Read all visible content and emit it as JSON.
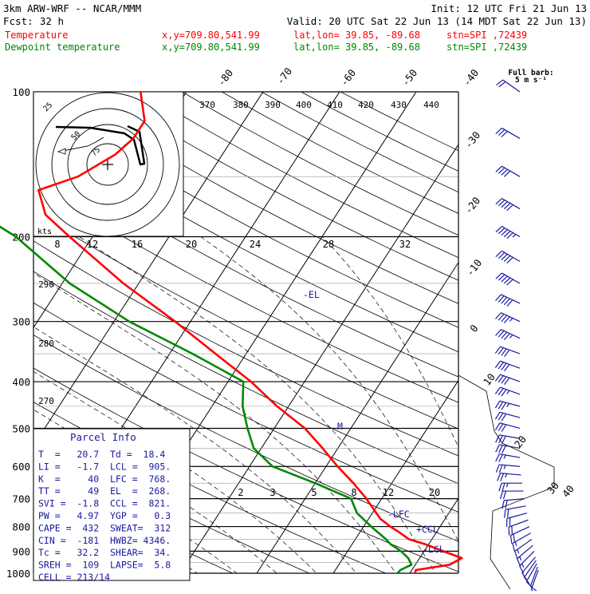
{
  "header": {
    "model": "3km ARW-WRF -- NCAR/MMM",
    "init": "Init: 12 UTC Fri 21 Jun 13",
    "fcst_label": "Fcst:",
    "fcst_value": "32 h",
    "valid": "Valid: 20 UTC Sat 22 Jun 13 (14 MDT Sat 22 Jun 13)",
    "temp_label": "Temperature",
    "dew_label": "Dewpoint temperature",
    "xy": "x,y=709.80,541.99",
    "latlon": "lat,lon= 39.85, -89.68",
    "stn": "stn=SPI ,72439",
    "barb_title_1": "Full barb:",
    "barb_title_2": "5 m s⁻¹"
  },
  "colors": {
    "temperature": "#ff0000",
    "dewpoint": "#008800",
    "isotherm": "#000000",
    "barb": "#1a1aa0",
    "header_temp": "#ff0000",
    "header_dew": "#008800",
    "parcel_text": "#1a1aa0"
  },
  "parcel": {
    "title": "Parcel Info",
    "rows": [
      "T  =   20.7  Td =  18.4",
      "LI =   -1.7  LCL =  905.",
      "K  =     40  LFC =  768.",
      "TT =     49  EL  =  268.",
      "SVI =  -1.8  CCL =  821.",
      "PW =   4.97  YGP =   0.3",
      "CAPE =  432  SWEAT=  312",
      "CIN =  -181  HWBZ= 4346.",
      "Tc =   32.2  SHEAR=  34.",
      "SREH =  109  LAPSE=  5.8",
      "CELL = 213/14"
    ]
  },
  "hodograph": {
    "ring_labels": [
      "25",
      "50",
      "75"
    ],
    "kts_label": "kts"
  },
  "chart_data": {
    "type": "line",
    "title": "",
    "xlabel": "",
    "ylabel": "",
    "y_scale": "log pressure (hPa)",
    "pressure_levels": [
      100,
      200,
      300,
      400,
      500,
      600,
      700,
      800,
      900,
      1000
    ],
    "isotherm_labels_top": [
      "-80",
      "-70",
      "-60",
      "-50",
      "-40"
    ],
    "isotherm_labels_right": [
      "-30",
      "-20",
      "-10",
      "0",
      "10",
      "20",
      "30",
      "40"
    ],
    "theta_labels_top": [
      "370",
      "380",
      "390",
      "400",
      "410",
      "420",
      "430",
      "440"
    ],
    "theta_labels_left": [
      "290",
      "280",
      "270"
    ],
    "mixing_ratio_labels_upper": [
      "8",
      "12",
      "16",
      "20",
      "24",
      "28",
      "32"
    ],
    "mixing_ratio_labels_lower": [
      "2",
      "3",
      "5",
      "8",
      "12",
      "20"
    ],
    "level_markers": [
      {
        "label": "EL",
        "pressure": 268
      },
      {
        "label": "LFC",
        "pressure": 768
      },
      {
        "label": "CCL",
        "pressure": 821
      },
      {
        "label": "LCL",
        "pressure": 905
      },
      {
        "label": "M",
        "pressure": 510
      }
    ],
    "series": [
      {
        "name": "Temperature",
        "points": [
          {
            "p": 1000,
            "t": 20.7
          },
          {
            "p": 985,
            "t": 20.5
          },
          {
            "p": 960,
            "t": 24.5
          },
          {
            "p": 930,
            "t": 25.5
          },
          {
            "p": 900,
            "t": 22.5
          },
          {
            "p": 870,
            "t": 19.5
          },
          {
            "p": 850,
            "t": 17.0
          },
          {
            "p": 820,
            "t": 15.0
          },
          {
            "p": 800,
            "t": 13.5
          },
          {
            "p": 770,
            "t": 11.5
          },
          {
            "p": 700,
            "t": 8.0
          },
          {
            "p": 650,
            "t": 5.0
          },
          {
            "p": 600,
            "t": 1.5
          },
          {
            "p": 550,
            "t": -2.0
          },
          {
            "p": 500,
            "t": -6.0
          },
          {
            "p": 450,
            "t": -11.5
          },
          {
            "p": 400,
            "t": -17.0
          },
          {
            "p": 350,
            "t": -24.0
          },
          {
            "p": 300,
            "t": -32.0
          },
          {
            "p": 250,
            "t": -42.0
          },
          {
            "p": 200,
            "t": -53.0
          },
          {
            "p": 180,
            "t": -58.0
          },
          {
            "p": 160,
            "t": -61.0
          },
          {
            "p": 150,
            "t": -57.0
          },
          {
            "p": 135,
            "t": -54.0
          },
          {
            "p": 125,
            "t": -53.0
          },
          {
            "p": 115,
            "t": -53.0
          },
          {
            "p": 100,
            "t": -56.0
          }
        ]
      },
      {
        "name": "Dewpoint temperature",
        "points": [
          {
            "p": 1000,
            "t": 18.4
          },
          {
            "p": 985,
            "t": 18.5
          },
          {
            "p": 960,
            "t": 19.5
          },
          {
            "p": 930,
            "t": 18.5
          },
          {
            "p": 900,
            "t": 17.0
          },
          {
            "p": 870,
            "t": 15.0
          },
          {
            "p": 850,
            "t": 14.0
          },
          {
            "p": 800,
            "t": 11.0
          },
          {
            "p": 750,
            "t": 8.0
          },
          {
            "p": 700,
            "t": 6.0
          },
          {
            "p": 650,
            "t": 0.0
          },
          {
            "p": 600,
            "t": -7.0
          },
          {
            "p": 550,
            "t": -11.0
          },
          {
            "p": 500,
            "t": -13.5
          },
          {
            "p": 450,
            "t": -16.0
          },
          {
            "p": 400,
            "t": -18.0
          },
          {
            "p": 350,
            "t": -27.0
          },
          {
            "p": 300,
            "t": -38.0
          },
          {
            "p": 250,
            "t": -49.0
          },
          {
            "p": 200,
            "t": -60.0
          },
          {
            "p": 170,
            "t": -70.0
          },
          {
            "p": 150,
            "t": -78.0
          },
          {
            "p": 130,
            "t": -83.0
          },
          {
            "p": 115,
            "t": -85.0
          },
          {
            "p": 100,
            "t": -86.0
          }
        ]
      }
    ],
    "wind_profile": [
      {
        "p": 985,
        "speed_ms": 4,
        "dir": 200
      },
      {
        "p": 970,
        "speed_ms": 5,
        "dir": 200
      },
      {
        "p": 955,
        "speed_ms": 6,
        "dir": 210
      },
      {
        "p": 940,
        "speed_ms": 7,
        "dir": 215
      },
      {
        "p": 925,
        "speed_ms": 7,
        "dir": 220
      },
      {
        "p": 900,
        "speed_ms": 8,
        "dir": 225
      },
      {
        "p": 875,
        "speed_ms": 8,
        "dir": 230
      },
      {
        "p": 850,
        "speed_ms": 9,
        "dir": 235
      },
      {
        "p": 825,
        "speed_ms": 9,
        "dir": 240
      },
      {
        "p": 800,
        "speed_ms": 10,
        "dir": 245
      },
      {
        "p": 775,
        "speed_ms": 10,
        "dir": 250
      },
      {
        "p": 750,
        "speed_ms": 11,
        "dir": 255
      },
      {
        "p": 725,
        "speed_ms": 11,
        "dir": 260
      },
      {
        "p": 700,
        "speed_ms": 12,
        "dir": 265
      },
      {
        "p": 675,
        "speed_ms": 12,
        "dir": 270
      },
      {
        "p": 650,
        "speed_ms": 13,
        "dir": 270
      },
      {
        "p": 625,
        "speed_ms": 13,
        "dir": 275
      },
      {
        "p": 600,
        "speed_ms": 14,
        "dir": 275
      },
      {
        "p": 575,
        "speed_ms": 14,
        "dir": 280
      },
      {
        "p": 550,
        "speed_ms": 15,
        "dir": 280
      },
      {
        "p": 525,
        "speed_ms": 15,
        "dir": 280
      },
      {
        "p": 500,
        "speed_ms": 16,
        "dir": 285
      },
      {
        "p": 475,
        "speed_ms": 17,
        "dir": 285
      },
      {
        "p": 450,
        "speed_ms": 18,
        "dir": 285
      },
      {
        "p": 425,
        "speed_ms": 19,
        "dir": 290
      },
      {
        "p": 400,
        "speed_ms": 20,
        "dir": 290
      },
      {
        "p": 375,
        "speed_ms": 21,
        "dir": 290
      },
      {
        "p": 350,
        "speed_ms": 22,
        "dir": 290
      },
      {
        "p": 325,
        "speed_ms": 23,
        "dir": 295
      },
      {
        "p": 300,
        "speed_ms": 24,
        "dir": 295
      },
      {
        "p": 275,
        "speed_ms": 25,
        "dir": 295
      },
      {
        "p": 250,
        "speed_ms": 26,
        "dir": 300
      },
      {
        "p": 225,
        "speed_ms": 27,
        "dir": 300
      },
      {
        "p": 200,
        "speed_ms": 28,
        "dir": 300
      },
      {
        "p": 175,
        "speed_ms": 25,
        "dir": 300
      },
      {
        "p": 150,
        "speed_ms": 20,
        "dir": 300
      },
      {
        "p": 125,
        "speed_ms": 15,
        "dir": 300
      },
      {
        "p": 100,
        "speed_ms": 12,
        "dir": 305
      }
    ],
    "hodograph_points": [
      {
        "u": -1,
        "v": 2
      },
      {
        "u": 1,
        "v": 3
      },
      {
        "u": 3,
        "v": 4
      },
      {
        "u": 6,
        "v": 5
      },
      {
        "u": 9,
        "v": 5
      },
      {
        "u": 12,
        "v": 6
      },
      {
        "u": 15,
        "v": 7
      },
      {
        "u": 18,
        "v": 9
      },
      {
        "u": 21,
        "v": 12
      },
      {
        "u": 24,
        "v": 14
      },
      {
        "u": 27,
        "v": 16
      }
    ]
  }
}
